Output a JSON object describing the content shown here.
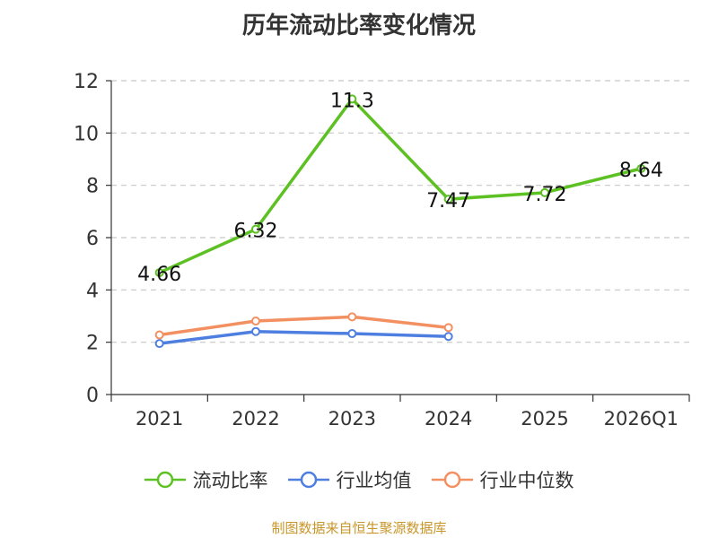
{
  "chart_data": {
    "type": "line",
    "title": "历年流动比率变化情况",
    "categories": [
      "2021",
      "2022",
      "2023",
      "2024",
      "2025",
      "2026Q1"
    ],
    "ylim": [
      0,
      12
    ],
    "yticks": [
      0,
      2,
      4,
      6,
      8,
      10,
      12
    ],
    "grid": true,
    "legend_position": "bottom",
    "series": [
      {
        "name": "流动比率",
        "color": "#5dc124",
        "show_labels": true,
        "values": [
          4.66,
          6.32,
          11.3,
          7.47,
          7.72,
          8.64
        ]
      },
      {
        "name": "行业均值",
        "color": "#4e7fe0",
        "show_labels": false,
        "values": [
          1.95,
          2.41,
          2.33,
          2.22,
          null,
          null
        ]
      },
      {
        "name": "行业中位数",
        "color": "#f39061",
        "show_labels": false,
        "values": [
          2.28,
          2.81,
          2.97,
          2.56,
          null,
          null
        ]
      }
    ]
  },
  "source_note": "制图数据来自恒生聚源数据库"
}
